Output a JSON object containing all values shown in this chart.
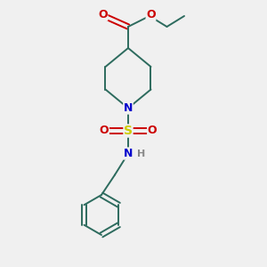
{
  "bg_color": "#f0f0f0",
  "atom_colors": {
    "C": "#2d6b5e",
    "N": "#0000cc",
    "O": "#cc0000",
    "S": "#cccc00",
    "H": "#888888"
  },
  "bond_color": "#2d6b5e",
  "figsize": [
    3.0,
    3.0
  ],
  "dpi": 100
}
